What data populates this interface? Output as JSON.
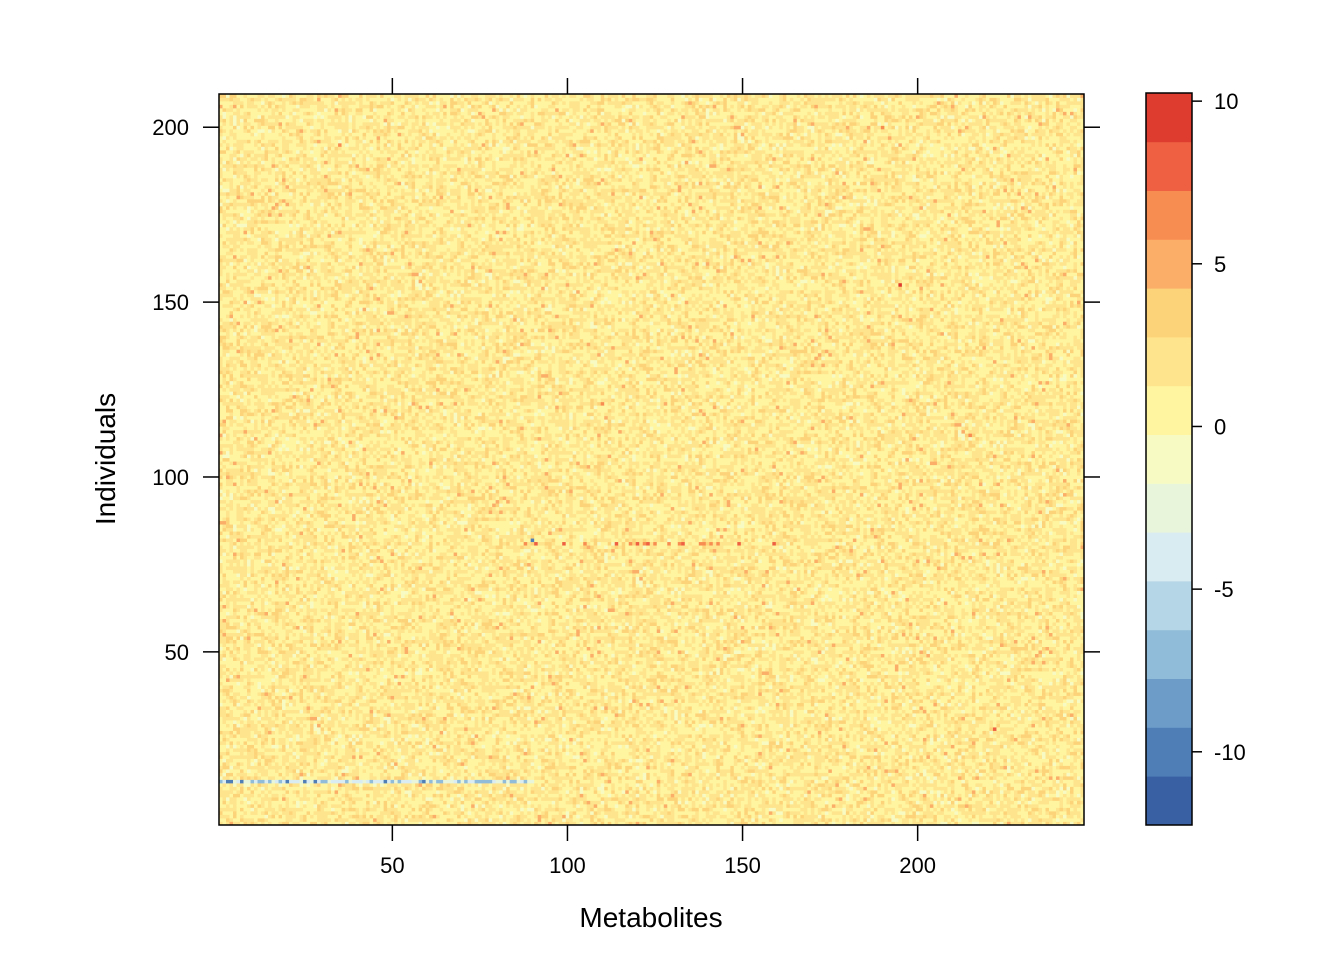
{
  "chart_data": {
    "type": "heatmap",
    "title": "",
    "xlabel": "Metabolites",
    "ylabel": "Individuals",
    "xlim": [
      0.5,
      247.5
    ],
    "ylim": [
      0.5,
      209.5
    ],
    "n_cols": 247,
    "n_rows": 209,
    "xticks": [
      50,
      100,
      150,
      200
    ],
    "yticks": [
      50,
      100,
      150,
      200
    ],
    "colorbar": {
      "range": [
        -12.25,
        10.25
      ],
      "ticks": [
        10,
        5,
        0,
        -5,
        -10
      ],
      "bin_edges": [
        -12.25,
        -10.75,
        -9.25,
        -7.75,
        -6.25,
        -4.75,
        -3.25,
        -1.75,
        -0.25,
        1.25,
        2.75,
        4.25,
        5.75,
        7.25,
        8.75,
        10.25
      ],
      "colors": [
        "#3A60A4",
        "#4F7EB7",
        "#6D9CC9",
        "#91BCD9",
        "#B5D6E6",
        "#D8ECF2",
        "#E9F5DA",
        "#F7FBC3",
        "#FFF5A0",
        "#FEE48C",
        "#FDD37A",
        "#FBAE68",
        "#F88D52",
        "#EE6041",
        "#DD3C2E",
        "#C81D21"
      ]
    },
    "highlights": [
      {
        "row": 13,
        "from_col": 1,
        "to_col": 90,
        "value_range": [
          -11,
          -3
        ],
        "note": ""
      },
      {
        "row": 81,
        "from_col": 88,
        "to_col": 165,
        "value_range": [
          6,
          9
        ],
        "note": ""
      },
      {
        "row": 82,
        "col": 90,
        "value": -10
      },
      {
        "row": 155,
        "col": 195,
        "value": 9
      },
      {
        "row": 28,
        "col": 222,
        "value": 8
      },
      {
        "row": 195,
        "col": 35,
        "value": 7
      },
      {
        "row": 121,
        "col": 110,
        "value": 7
      },
      {
        "row": 112,
        "col": 215,
        "value": 7
      },
      {
        "row": 200,
        "col": 190,
        "value": 6
      }
    ],
    "background_value_range": [
      -2,
      3
    ]
  }
}
